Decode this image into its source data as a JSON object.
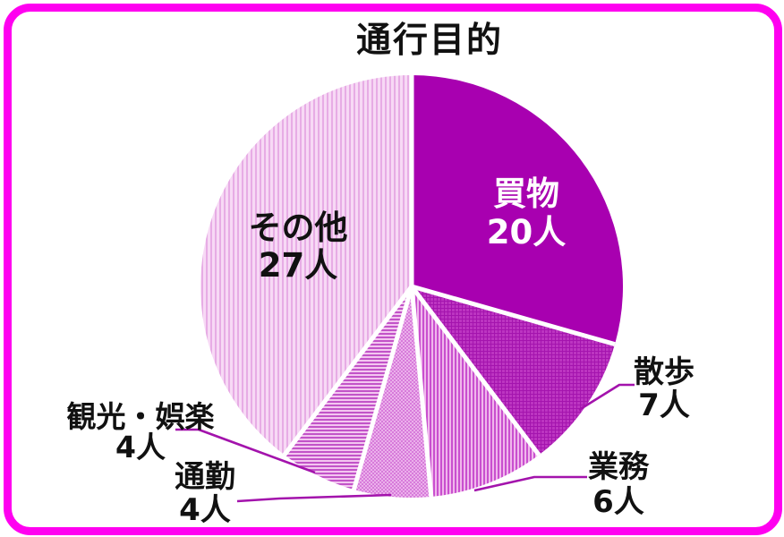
{
  "page": {
    "background": "#FFFFFF",
    "frame_color": "#FF00F0"
  },
  "chart_data": {
    "type": "pie",
    "title": "通行目的",
    "unit": "人",
    "direction": "clockwise",
    "start_angle_deg": 0,
    "legend": "none",
    "separator_color": "#FFFFFF",
    "callout_color": "#A313AC",
    "slices": [
      {
        "label": "買物",
        "value": 20,
        "display": "20人",
        "label_placement": "inside",
        "text_color": "#FFFFFF",
        "pattern": {
          "type": "solid",
          "colors": [
            "#A800B0"
          ]
        }
      },
      {
        "label": "散歩",
        "value": 7,
        "display": "7人",
        "label_placement": "outside",
        "text_color": "#111111",
        "pattern": {
          "type": "grid",
          "colors": [
            "#BC35C1",
            "#A414AE"
          ]
        }
      },
      {
        "label": "業務",
        "value": 6,
        "display": "6人",
        "label_placement": "outside",
        "text_color": "#111111",
        "pattern": {
          "type": "vstripe",
          "colors": [
            "#C94FCF",
            "#F0B7EC"
          ]
        }
      },
      {
        "label": "通勤",
        "value": 4,
        "display": "4人",
        "label_placement": "outside",
        "text_color": "#111111",
        "pattern": {
          "type": "checker",
          "colors": [
            "#D77BDA",
            "#EBB0EB"
          ]
        }
      },
      {
        "label": "観光・娯楽",
        "value": 4,
        "display": "4人",
        "label_placement": "outside",
        "text_color": "#111111",
        "pattern": {
          "type": "hstripe",
          "colors": [
            "#C253C8",
            "#F3C6F0"
          ]
        }
      },
      {
        "label": "その他",
        "value": 27,
        "display": "27人",
        "label_placement": "inside",
        "text_color": "#111111",
        "pattern": {
          "type": "vstripe-light",
          "colors": [
            "#E7ACE5",
            "#F7D9F5"
          ]
        }
      }
    ]
  }
}
